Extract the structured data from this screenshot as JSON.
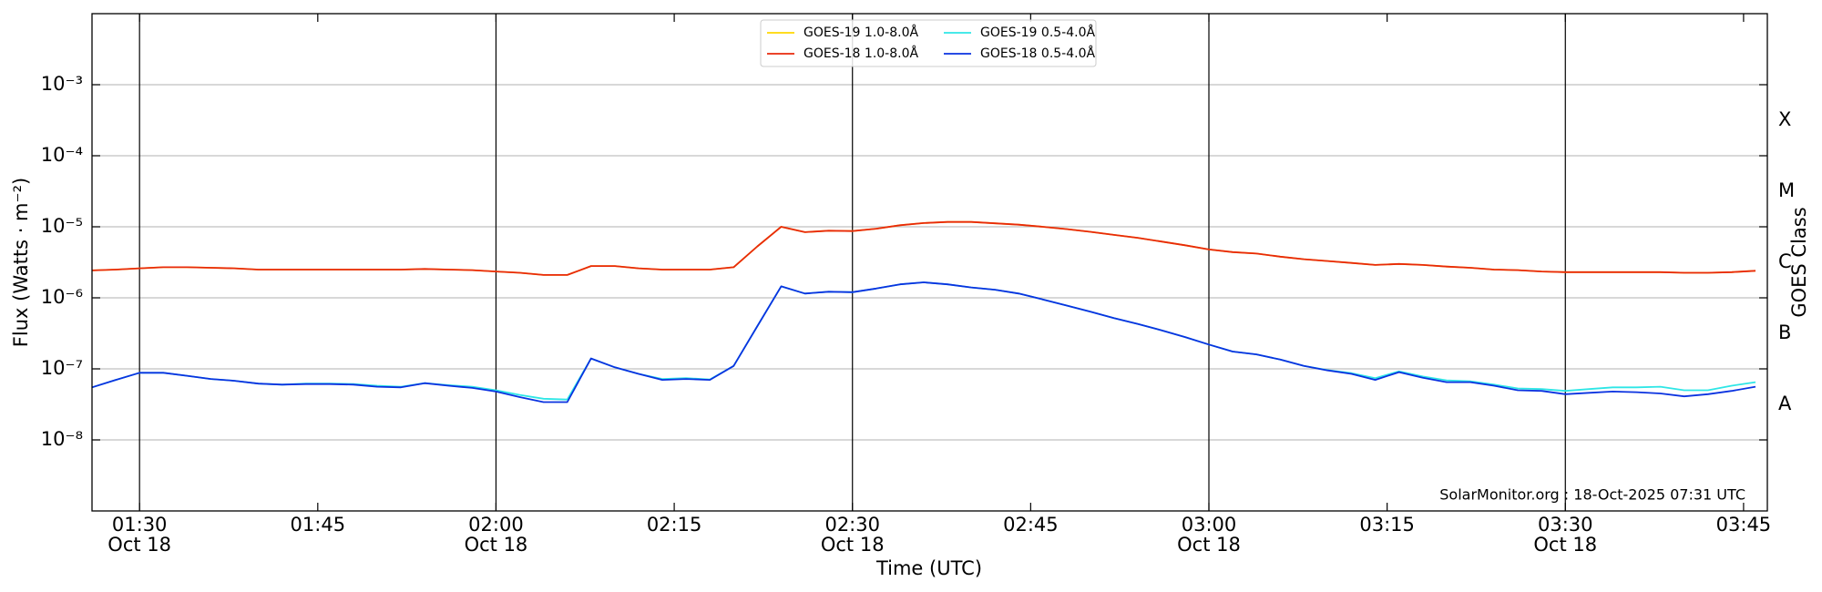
{
  "chart_data": {
    "type": "line",
    "xlabel": "Time (UTC)",
    "ylabel": "Flux (Watts · m⁻²)",
    "y2label": "GOES Class",
    "annotation": "SolarMonitor.org : 18-Oct-2025 07:31 UTC",
    "log_y": true,
    "grid": true,
    "legend": "upper center",
    "xlim": [
      "01:26",
      "03:47"
    ],
    "xticks": [
      "01:30",
      "01:45",
      "02:00",
      "02:15",
      "02:30",
      "02:45",
      "03:00",
      "03:15",
      "03:30",
      "03:45"
    ],
    "xtick_dates": [
      "Oct 18",
      null,
      "Oct 18",
      null,
      "Oct 18",
      null,
      "Oct 18",
      null,
      "Oct 18",
      null
    ],
    "vlines": [
      "01:30",
      "02:00",
      "02:30",
      "03:00",
      "03:30"
    ],
    "ylim": [
      1e-09,
      0.01
    ],
    "yticks": [
      {
        "value": 1e-08,
        "label": "10⁻⁸"
      },
      {
        "value": 1e-07,
        "label": "10⁻⁷"
      },
      {
        "value": 1e-06,
        "label": "10⁻⁶"
      },
      {
        "value": 1e-05,
        "label": "10⁻⁵"
      },
      {
        "value": 0.0001,
        "label": "10⁻⁴"
      },
      {
        "value": 0.001,
        "label": "10⁻³"
      }
    ],
    "y2lim": [
      1e-09,
      0.01
    ],
    "y2ticks": [
      {
        "value": 3.16e-08,
        "label": "A"
      },
      {
        "value": 3.16e-07,
        "label": "B"
      },
      {
        "value": 3.16e-06,
        "label": "C"
      },
      {
        "value": 3.16e-05,
        "label": "M"
      },
      {
        "value": 0.000316,
        "label": "X"
      }
    ],
    "x": [
      "01:26",
      "01:28",
      "01:30",
      "01:32",
      "01:34",
      "01:36",
      "01:38",
      "01:40",
      "01:42",
      "01:44",
      "01:46",
      "01:48",
      "01:50",
      "01:52",
      "01:54",
      "01:56",
      "01:58",
      "02:00",
      "02:02",
      "02:04",
      "02:06",
      "02:08",
      "02:10",
      "02:12",
      "02:14",
      "02:16",
      "02:18",
      "02:20",
      "02:22",
      "02:24",
      "02:26",
      "02:28",
      "02:30",
      "02:32",
      "02:34",
      "02:36",
      "02:38",
      "02:40",
      "02:42",
      "02:44",
      "02:46",
      "02:48",
      "02:50",
      "02:52",
      "02:54",
      "02:56",
      "02:58",
      "03:00",
      "03:02",
      "03:04",
      "03:06",
      "03:08",
      "03:10",
      "03:12",
      "03:14",
      "03:16",
      "03:18",
      "03:20",
      "03:22",
      "03:24",
      "03:26",
      "03:28",
      "03:30",
      "03:32",
      "03:34",
      "03:36",
      "03:38",
      "03:40",
      "03:42",
      "03:44",
      "03:46"
    ],
    "series": [
      {
        "name": "GOES-19 1.0-8.0Å",
        "color": "#ffd700",
        "values": [
          2.43e-06,
          2.5e-06,
          2.6e-06,
          2.7e-06,
          2.7e-06,
          2.65e-06,
          2.6e-06,
          2.5e-06,
          2.5e-06,
          2.5e-06,
          2.5e-06,
          2.5e-06,
          2.5e-06,
          2.5e-06,
          2.55e-06,
          2.5e-06,
          2.45e-06,
          2.35e-06,
          2.25e-06,
          2.1e-06,
          2.1e-06,
          2.8e-06,
          2.8e-06,
          2.6e-06,
          2.5e-06,
          2.5e-06,
          2.5e-06,
          2.7e-06,
          5.3e-06,
          1e-05,
          8.4e-06,
          8.8e-06,
          8.7e-06,
          9.4e-06,
          1.05e-05,
          1.13e-05,
          1.17e-05,
          1.17e-05,
          1.12e-05,
          1.07e-05,
          1e-05,
          9.3e-06,
          8.5e-06,
          7.7e-06,
          7e-06,
          6.2e-06,
          5.5e-06,
          4.8e-06,
          4.4e-06,
          4.2e-06,
          3.8e-06,
          3.5e-06,
          3.3e-06,
          3.1e-06,
          2.9e-06,
          3e-06,
          2.9e-06,
          2.75e-06,
          2.65e-06,
          2.5e-06,
          2.45e-06,
          2.35e-06,
          2.3e-06,
          2.3e-06,
          2.3e-06,
          2.3e-06,
          2.3e-06,
          2.25e-06,
          2.25e-06,
          2.3e-06,
          2.4e-06
        ]
      },
      {
        "name": "GOES-18 1.0-8.0Å",
        "color": "#e8290b",
        "values": [
          2.43e-06,
          2.5e-06,
          2.6e-06,
          2.7e-06,
          2.7e-06,
          2.65e-06,
          2.6e-06,
          2.5e-06,
          2.5e-06,
          2.5e-06,
          2.5e-06,
          2.5e-06,
          2.5e-06,
          2.5e-06,
          2.55e-06,
          2.5e-06,
          2.45e-06,
          2.35e-06,
          2.25e-06,
          2.1e-06,
          2.1e-06,
          2.8e-06,
          2.8e-06,
          2.6e-06,
          2.5e-06,
          2.5e-06,
          2.5e-06,
          2.7e-06,
          5.3e-06,
          1e-05,
          8.4e-06,
          8.8e-06,
          8.7e-06,
          9.4e-06,
          1.05e-05,
          1.13e-05,
          1.17e-05,
          1.17e-05,
          1.12e-05,
          1.07e-05,
          1e-05,
          9.3e-06,
          8.5e-06,
          7.7e-06,
          7e-06,
          6.2e-06,
          5.5e-06,
          4.8e-06,
          4.4e-06,
          4.2e-06,
          3.8e-06,
          3.5e-06,
          3.3e-06,
          3.1e-06,
          2.9e-06,
          3e-06,
          2.9e-06,
          2.75e-06,
          2.65e-06,
          2.5e-06,
          2.45e-06,
          2.35e-06,
          2.3e-06,
          2.3e-06,
          2.3e-06,
          2.3e-06,
          2.3e-06,
          2.25e-06,
          2.25e-06,
          2.3e-06,
          2.4e-06
        ]
      },
      {
        "name": "GOES-19 0.5-4.0Å",
        "color": "#2ee6e6",
        "values": [
          5.5e-08,
          7e-08,
          8.8e-08,
          8.8e-08,
          8e-08,
          7.2e-08,
          6.8e-08,
          6.2e-08,
          6e-08,
          6.2e-08,
          6.2e-08,
          6.1e-08,
          5.8e-08,
          5.6e-08,
          6.3e-08,
          5.9e-08,
          5.6e-08,
          5e-08,
          4.3e-08,
          3.8e-08,
          3.7e-08,
          1.4e-07,
          1.05e-07,
          8.5e-08,
          7.2e-08,
          7.4e-08,
          7.1e-08,
          1.1e-07,
          4e-07,
          1.45e-06,
          1.15e-06,
          1.22e-06,
          1.2e-06,
          1.35e-06,
          1.55e-06,
          1.65e-06,
          1.55e-06,
          1.4e-06,
          1.3e-06,
          1.15e-06,
          9.5e-07,
          7.8e-07,
          6.4e-07,
          5.2e-07,
          4.3e-07,
          3.5e-07,
          2.8e-07,
          2.2e-07,
          1.75e-07,
          1.6e-07,
          1.35e-07,
          1.1e-07,
          9.6e-08,
          8.7e-08,
          7.4e-08,
          9.2e-08,
          7.8e-08,
          6.9e-08,
          6.7e-08,
          6e-08,
          5.3e-08,
          5.2e-08,
          4.9e-08,
          5.2e-08,
          5.5e-08,
          5.5e-08,
          5.6e-08,
          5e-08,
          5e-08,
          5.8e-08,
          6.5e-08
        ]
      },
      {
        "name": "GOES-18 0.5-4.0Å",
        "color": "#0a32e0",
        "values": [
          5.5e-08,
          7e-08,
          8.8e-08,
          8.8e-08,
          8e-08,
          7.2e-08,
          6.8e-08,
          6.2e-08,
          6e-08,
          6.1e-08,
          6.1e-08,
          6e-08,
          5.6e-08,
          5.5e-08,
          6.3e-08,
          5.8e-08,
          5.4e-08,
          4.8e-08,
          4e-08,
          3.4e-08,
          3.4e-08,
          1.4e-07,
          1.05e-07,
          8.5e-08,
          7e-08,
          7.2e-08,
          7e-08,
          1.1e-07,
          4e-07,
          1.45e-06,
          1.15e-06,
          1.22e-06,
          1.2e-06,
          1.35e-06,
          1.55e-06,
          1.65e-06,
          1.55e-06,
          1.4e-06,
          1.3e-06,
          1.15e-06,
          9.5e-07,
          7.8e-07,
          6.4e-07,
          5.2e-07,
          4.3e-07,
          3.5e-07,
          2.8e-07,
          2.2e-07,
          1.75e-07,
          1.6e-07,
          1.35e-07,
          1.1e-07,
          9.5e-08,
          8.5e-08,
          7e-08,
          9e-08,
          7.5e-08,
          6.5e-08,
          6.5e-08,
          5.8e-08,
          5e-08,
          4.9e-08,
          4.4e-08,
          4.6e-08,
          4.8e-08,
          4.7e-08,
          4.5e-08,
          4.1e-08,
          4.4e-08,
          4.9e-08,
          5.6e-08
        ]
      }
    ]
  }
}
